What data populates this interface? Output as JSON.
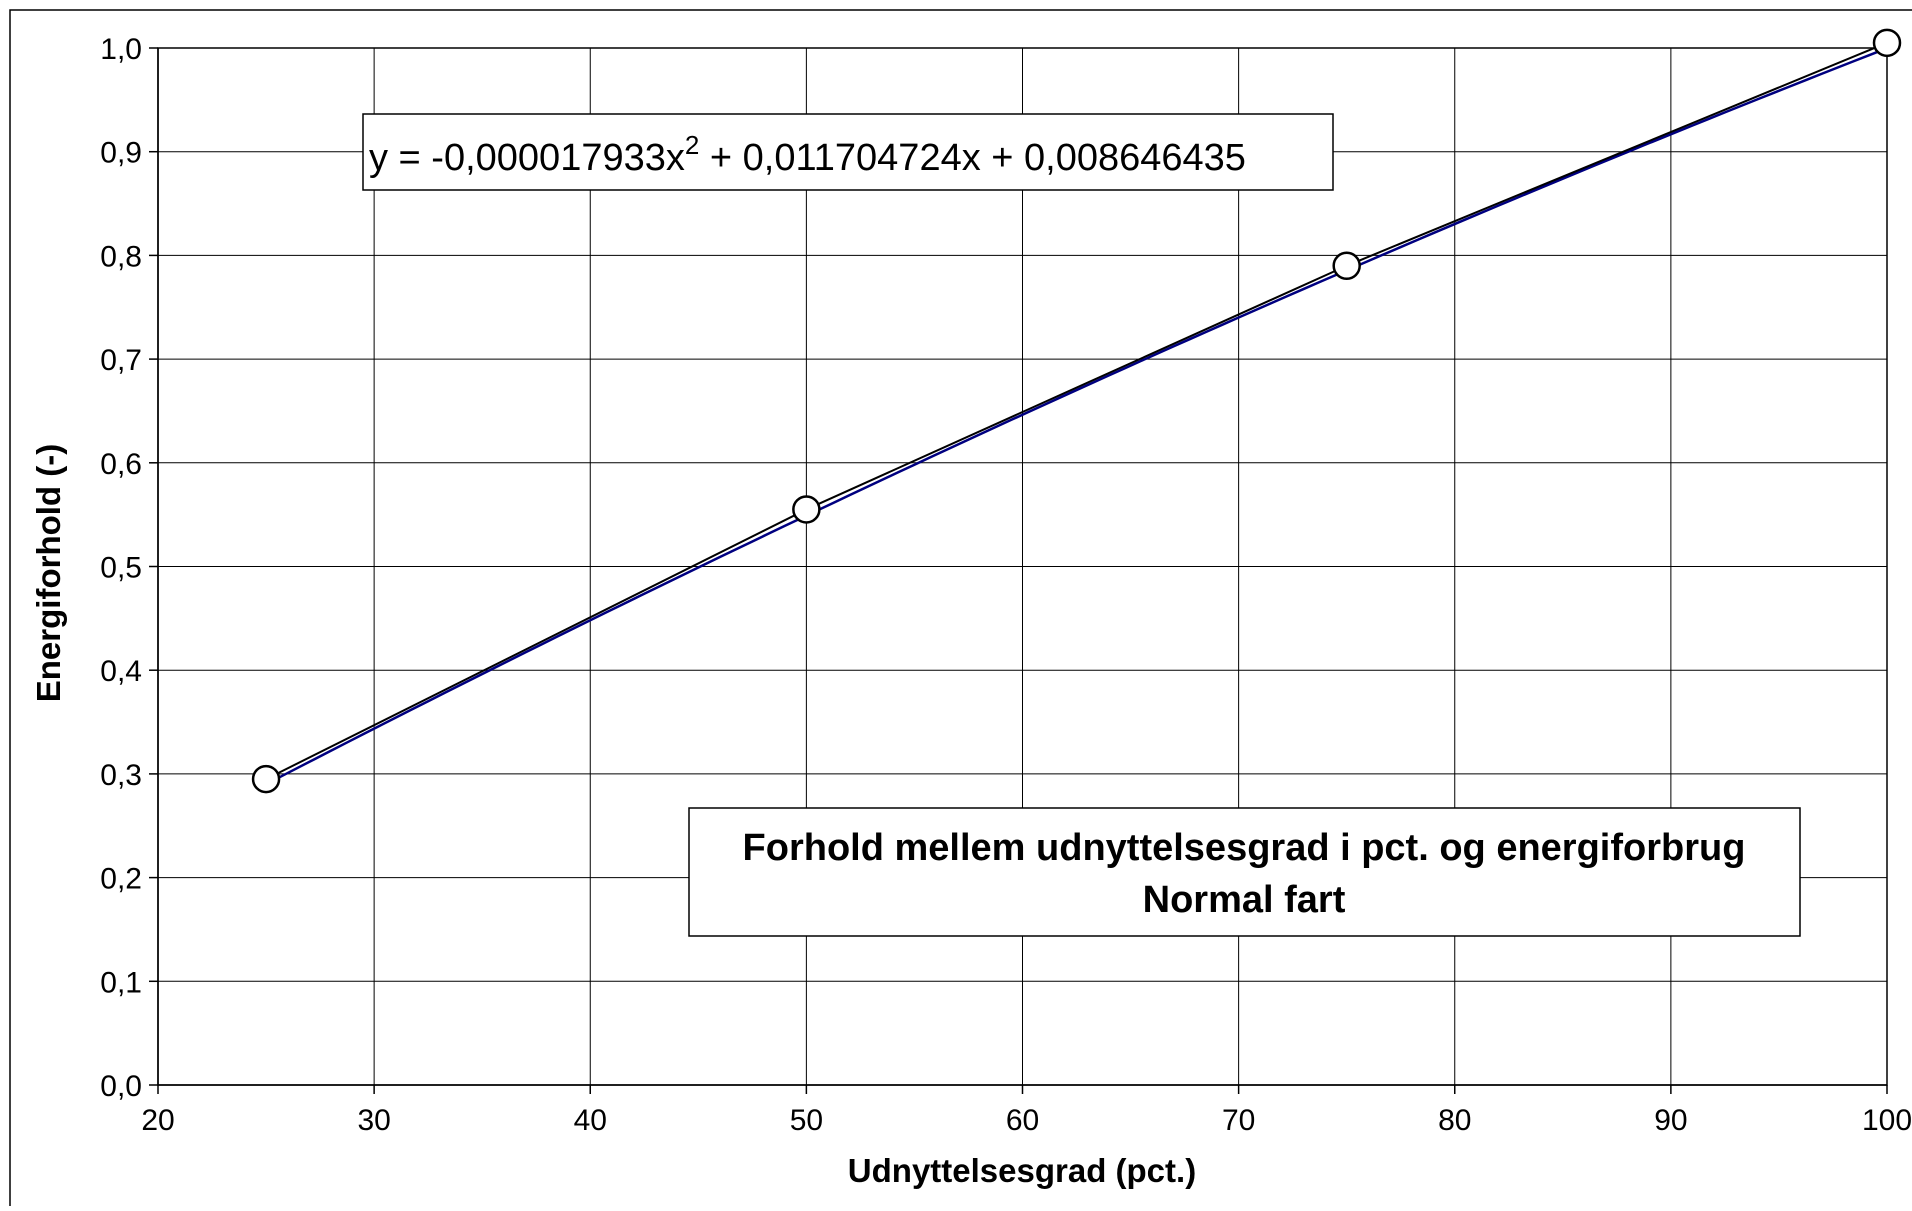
{
  "chart_data": {
    "type": "scatter",
    "title": "Forhold mellem udnyttelsesgrad i pct. og energiforbrug",
    "subtitle": "Normal fart",
    "xlabel": "Udnyttelsesgrad (pct.)",
    "ylabel": "Energiforhold (-)",
    "xlim": [
      20,
      100
    ],
    "ylim": [
      0.0,
      1.0
    ],
    "xticks": [
      20,
      30,
      40,
      50,
      60,
      70,
      80,
      90,
      100
    ],
    "yticks": [
      0.0,
      0.1,
      0.2,
      0.3,
      0.4,
      0.5,
      0.6,
      0.7,
      0.8,
      0.9,
      1.0
    ],
    "ytick_labels": [
      "0,0",
      "0,1",
      "0,2",
      "0,3",
      "0,4",
      "0,5",
      "0,6",
      "0,7",
      "0,8",
      "0,9",
      "1,0"
    ],
    "grid": true,
    "points": [
      {
        "x": 25,
        "y": 0.295
      },
      {
        "x": 50,
        "y": 0.555
      },
      {
        "x": 75,
        "y": 0.79
      },
      {
        "x": 100,
        "y": 1.005
      }
    ],
    "trendline": {
      "type": "polynomial",
      "coefficients": [
        -1.7933e-05,
        0.011704724,
        0.008646435
      ],
      "equation_prefix": "y = -0,000017933x",
      "equation_sup": "2",
      "equation_suffix": " + 0,011704724x + 0,008646435"
    },
    "colors": {
      "series": "#000000",
      "trendline": "#000080",
      "grid": "#000000"
    }
  }
}
